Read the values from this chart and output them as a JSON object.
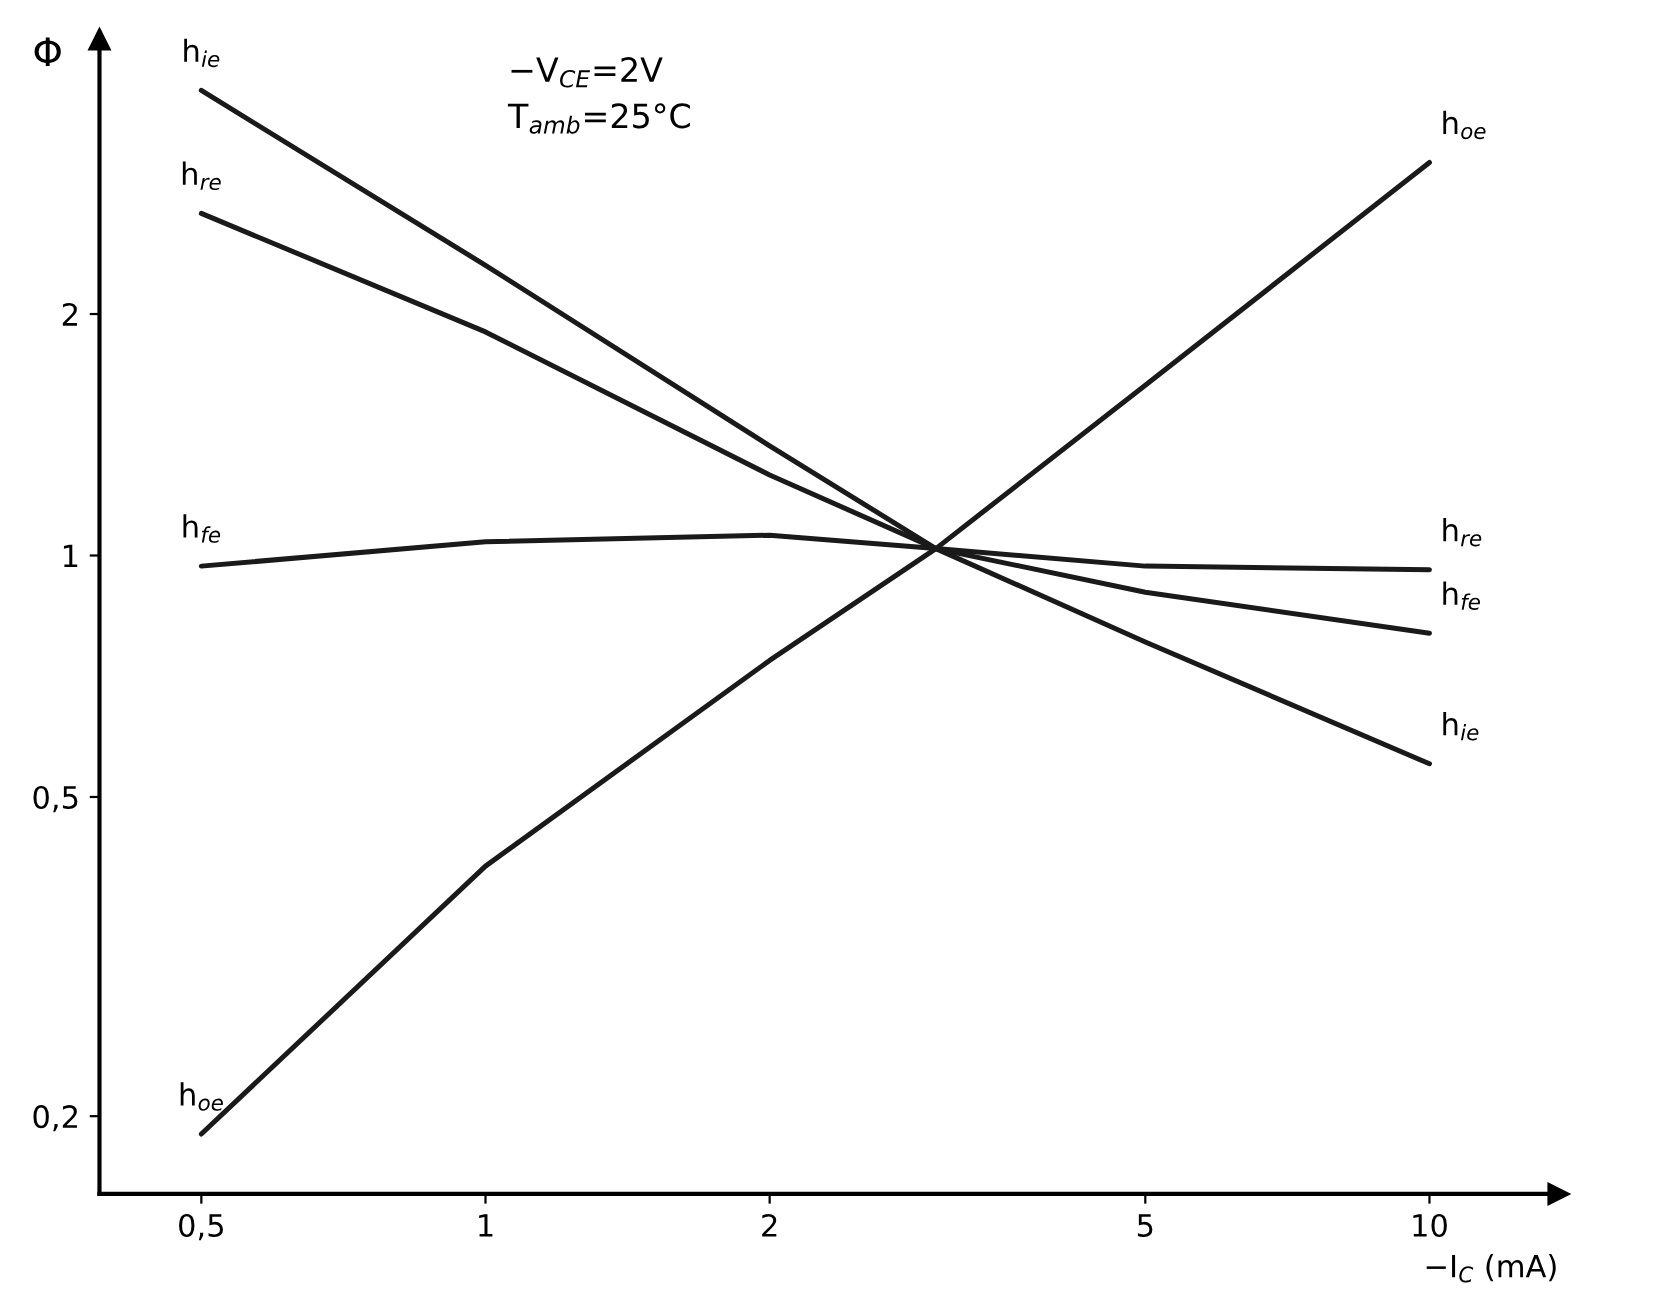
{
  "chart_data": {
    "type": "line",
    "x": [
      0.5,
      1,
      2,
      3,
      5,
      10
    ],
    "series": [
      {
        "name": "h$_{ie}$",
        "color": "#1a1a1a",
        "values": [
          3.8,
          2.3,
          1.37,
          1.02,
          0.78,
          0.55
        ]
      },
      {
        "name": "h$_{re}$",
        "color": "#1a1a1a",
        "values": [
          2.67,
          1.9,
          1.26,
          1.02,
          0.97,
          0.96
        ]
      },
      {
        "name": "h$_{fe}$",
        "color": "#1a1a1a",
        "values": [
          0.97,
          1.04,
          1.06,
          1.02,
          0.9,
          0.8
        ]
      },
      {
        "name": "h$_{oe}$",
        "color": "#1a1a1a",
        "values": [
          0.19,
          0.41,
          0.74,
          1.02,
          1.63,
          3.09
        ]
      }
    ],
    "log": "xy",
    "xlim": [
      0.39,
      13.7
    ],
    "ylim": [
      0.16,
      4.4
    ],
    "xticks": [
      {
        "value": 0.5,
        "label": "0,5"
      },
      1,
      2,
      5,
      10
    ],
    "yticks": [
      {
        "value": 0.2,
        "label": "0,2"
      },
      {
        "value": 0.5,
        "label": "0,5"
      },
      1,
      2
    ],
    "xlabel": "−I$_{C}$ (mA)",
    "ylabel": "Φ",
    "annotations": [
      "−V$_{CE}$=2V",
      "T$_{amb}$=25°C"
    ],
    "grid": false,
    "legend": false,
    "marker": "none",
    "line_style": "solid"
  }
}
